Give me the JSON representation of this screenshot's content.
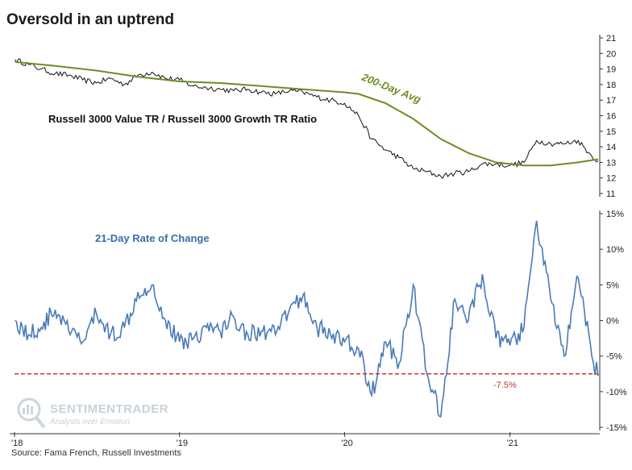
{
  "title": "Oversold in an uptrend",
  "source": "Source: Fama French, Russell Investments",
  "watermark": {
    "main": "SENTIMENTRADER",
    "sub": "Analysis over Emotion"
  },
  "colors": {
    "ratio_line": "#111111",
    "avg_line": "#6b8e23",
    "roc_line": "#4a7ab8",
    "threshold": "#c0392b",
    "axis": "#333333"
  },
  "chart_data": [
    {
      "type": "line",
      "annotation": "Russell 3000 Value TR / Russell 3000 Growth TR Ratio",
      "avg_label": "200-Day Avg",
      "ylim": [
        11,
        21
      ],
      "yticks": [
        "11",
        "12",
        "13",
        "14",
        "15",
        "16",
        "17",
        "18",
        "19",
        "20",
        "21"
      ],
      "x_range": [
        "2018-01-01",
        "2021-07-15"
      ],
      "xticks": [
        {
          "date": "2018-01-01",
          "label": "'18"
        },
        {
          "date": "2019-01-01",
          "label": "'19"
        },
        {
          "date": "2020-01-01",
          "label": "'20"
        },
        {
          "date": "2021-01-01",
          "label": "'21"
        }
      ],
      "series": [
        {
          "values": [
            [
              "2018-01-02",
              19.6
            ],
            [
              "2018-02-01",
              19.3
            ],
            [
              "2018-03-01",
              19.0
            ],
            [
              "2018-04-01",
              18.7
            ],
            [
              "2018-05-01",
              18.6
            ],
            [
              "2018-06-01",
              18.3
            ],
            [
              "2018-07-01",
              18.1
            ],
            [
              "2018-08-01",
              18.4
            ],
            [
              "2018-09-01",
              18.0
            ],
            [
              "2018-10-01",
              18.6
            ],
            [
              "2018-11-01",
              18.8
            ],
            [
              "2018-12-01",
              18.4
            ],
            [
              "2019-01-01",
              18.3
            ],
            [
              "2019-02-01",
              17.9
            ],
            [
              "2019-03-01",
              17.8
            ],
            [
              "2019-04-01",
              17.7
            ],
            [
              "2019-05-01",
              17.6
            ],
            [
              "2019-06-01",
              17.7
            ],
            [
              "2019-07-01",
              17.5
            ],
            [
              "2019-08-01",
              17.4
            ],
            [
              "2019-09-01",
              17.6
            ],
            [
              "2019-10-01",
              17.5
            ],
            [
              "2019-11-01",
              17.2
            ],
            [
              "2019-12-01",
              17.0
            ],
            [
              "2020-01-01",
              16.8
            ],
            [
              "2020-02-01",
              16.0
            ],
            [
              "2020-03-01",
              14.5
            ],
            [
              "2020-04-01",
              13.8
            ],
            [
              "2020-05-01",
              13.3
            ],
            [
              "2020-06-01",
              12.6
            ],
            [
              "2020-07-01",
              12.4
            ],
            [
              "2020-08-01",
              12.1
            ],
            [
              "2020-09-01",
              12.3
            ],
            [
              "2020-10-01",
              12.4
            ],
            [
              "2020-11-01",
              12.9
            ],
            [
              "2020-12-01",
              12.9
            ],
            [
              "2021-01-01",
              12.8
            ],
            [
              "2021-02-01",
              13.0
            ],
            [
              "2021-03-01",
              14.4
            ],
            [
              "2021-04-01",
              14.2
            ],
            [
              "2021-05-01",
              14.2
            ],
            [
              "2021-06-01",
              14.4
            ],
            [
              "2021-07-01",
              13.4
            ],
            [
              "2021-07-15",
              13.1
            ]
          ]
        },
        {
          "name": "200-Day Avg",
          "values": [
            [
              "2018-01-02",
              19.45
            ],
            [
              "2018-04-01",
              19.2
            ],
            [
              "2018-07-01",
              18.9
            ],
            [
              "2018-10-01",
              18.5
            ],
            [
              "2019-01-01",
              18.2
            ],
            [
              "2019-04-01",
              18.1
            ],
            [
              "2019-07-01",
              17.9
            ],
            [
              "2019-10-01",
              17.7
            ],
            [
              "2020-01-01",
              17.5
            ],
            [
              "2020-02-01",
              17.4
            ],
            [
              "2020-04-01",
              16.8
            ],
            [
              "2020-06-01",
              15.8
            ],
            [
              "2020-08-01",
              14.5
            ],
            [
              "2020-10-01",
              13.6
            ],
            [
              "2020-12-01",
              13.0
            ],
            [
              "2021-02-01",
              12.8
            ],
            [
              "2021-04-01",
              12.8
            ],
            [
              "2021-06-01",
              13.0
            ],
            [
              "2021-07-15",
              13.2
            ]
          ]
        }
      ]
    },
    {
      "type": "line",
      "annotation": "21-Day Rate of Change",
      "ylim": [
        -15,
        15
      ],
      "yticks": [
        "-15%",
        "-10%",
        "-5%",
        "0%",
        "5%",
        "10%",
        "15%"
      ],
      "threshold": -7.5,
      "threshold_label": "-7.5%",
      "series": [
        {
          "values": [
            [
              "2018-01-02",
              0.0
            ],
            [
              "2018-02-01",
              -2.0
            ],
            [
              "2018-03-01",
              -1.0
            ],
            [
              "2018-04-01",
              1.5
            ],
            [
              "2018-05-01",
              -1.5
            ],
            [
              "2018-06-01",
              -3.0
            ],
            [
              "2018-07-01",
              1.0
            ],
            [
              "2018-08-01",
              -2.0
            ],
            [
              "2018-09-01",
              -1.0
            ],
            [
              "2018-10-01",
              4.0
            ],
            [
              "2018-11-01",
              5.0
            ],
            [
              "2018-12-01",
              0.0
            ],
            [
              "2019-01-01",
              -3.0
            ],
            [
              "2019-02-01",
              -2.5
            ],
            [
              "2019-03-01",
              -1.0
            ],
            [
              "2019-04-01",
              -1.5
            ],
            [
              "2019-05-01",
              0.5
            ],
            [
              "2019-06-01",
              -2.0
            ],
            [
              "2019-07-01",
              -1.5
            ],
            [
              "2019-08-01",
              -2.0
            ],
            [
              "2019-09-01",
              1.5
            ],
            [
              "2019-10-01",
              3.5
            ],
            [
              "2019-11-01",
              -1.0
            ],
            [
              "2019-12-01",
              -2.0
            ],
            [
              "2020-01-01",
              -3.0
            ],
            [
              "2020-02-01",
              -4.0
            ],
            [
              "2020-03-01",
              -10.5
            ],
            [
              "2020-04-01",
              -3.0
            ],
            [
              "2020-05-01",
              -6.0
            ],
            [
              "2020-06-01",
              5.0
            ],
            [
              "2020-07-01",
              -7.5
            ],
            [
              "2020-08-01",
              -13.5
            ],
            [
              "2020-09-01",
              3.0
            ],
            [
              "2020-10-01",
              0.0
            ],
            [
              "2020-11-01",
              6.5
            ],
            [
              "2020-12-01",
              -2.5
            ],
            [
              "2021-01-01",
              -3.5
            ],
            [
              "2021-02-01",
              -1.0
            ],
            [
              "2021-03-01",
              14.0
            ],
            [
              "2021-04-01",
              3.0
            ],
            [
              "2021-05-01",
              -5.0
            ],
            [
              "2021-06-01",
              6.0
            ],
            [
              "2021-07-01",
              -5.0
            ],
            [
              "2021-07-15",
              -7.8
            ]
          ]
        }
      ]
    }
  ]
}
